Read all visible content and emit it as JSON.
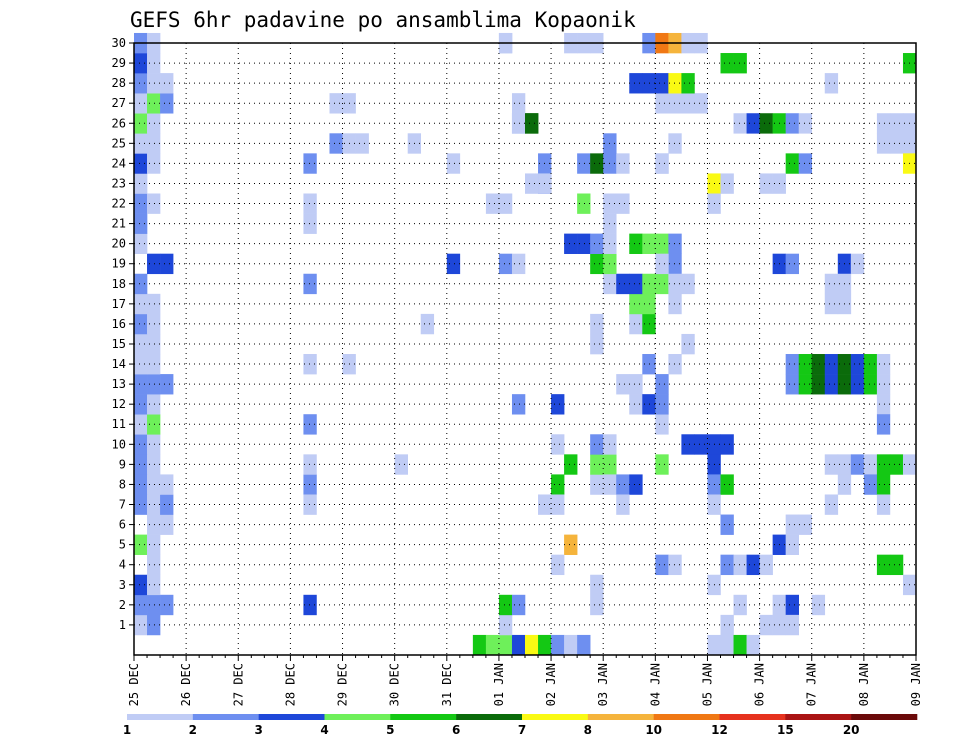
{
  "chart_data": {
    "type": "heatmap",
    "title": "GEFS 6hr padavine po ansamblima Kopaonik",
    "xlabel": "",
    "ylabel": "",
    "x_tick_labels": [
      "25 DEC",
      "26 DEC",
      "27 DEC",
      "28 DEC",
      "29 DEC",
      "30 DEC",
      "31 DEC",
      "01 JAN",
      "02 JAN",
      "03 JAN",
      "04 JAN",
      "05 JAN",
      "06 JAN",
      "07 JAN",
      "08 JAN",
      "09 JAN"
    ],
    "y_tick_labels": [
      "1",
      "2",
      "3",
      "4",
      "5",
      "6",
      "7",
      "8",
      "9",
      "10",
      "11",
      "12",
      "13",
      "14",
      "15",
      "16",
      "17",
      "18",
      "19",
      "20",
      "21",
      "22",
      "23",
      "24",
      "25",
      "26",
      "27",
      "28",
      "29",
      "30"
    ],
    "x_range_steps": [
      0,
      60
    ],
    "y_range_members": [
      0,
      30
    ],
    "time_step_hours": 6,
    "colorbar": {
      "tick_labels": [
        "1",
        "2",
        "3",
        "4",
        "5",
        "6",
        "7",
        "8",
        "10",
        "12",
        "15",
        "20"
      ],
      "colors": [
        "#c0ccf5",
        "#6e8ff0",
        "#1e47d9",
        "#6ef05a",
        "#14c814",
        "#0b6b0b",
        "#fafa14",
        "#f5b43c",
        "#f07814",
        "#e6321e",
        "#aa1414",
        "#6b0a0a"
      ]
    },
    "cells": [
      [
        1,
        0,
        1
      ],
      [
        1,
        1,
        2
      ],
      [
        2,
        0,
        2
      ],
      [
        2,
        1,
        2
      ],
      [
        2,
        2,
        2
      ],
      [
        3,
        0,
        3
      ],
      [
        3,
        1,
        1
      ],
      [
        4,
        1,
        1
      ],
      [
        5,
        0,
        4
      ],
      [
        5,
        1,
        1
      ],
      [
        6,
        1,
        1
      ],
      [
        6,
        2,
        1
      ],
      [
        7,
        0,
        2
      ],
      [
        7,
        1,
        1
      ],
      [
        7,
        2,
        2
      ],
      [
        8,
        0,
        2
      ],
      [
        8,
        1,
        1
      ],
      [
        8,
        2,
        1
      ],
      [
        9,
        0,
        2
      ],
      [
        9,
        1,
        1
      ],
      [
        10,
        0,
        2
      ],
      [
        10,
        1,
        1
      ],
      [
        11,
        0,
        1
      ],
      [
        11,
        1,
        4
      ],
      [
        12,
        0,
        2
      ],
      [
        12,
        1,
        1
      ],
      [
        13,
        0,
        2
      ],
      [
        13,
        1,
        2
      ],
      [
        13,
        2,
        2
      ],
      [
        14,
        0,
        1
      ],
      [
        14,
        1,
        1
      ],
      [
        15,
        0,
        1
      ],
      [
        15,
        1,
        1
      ],
      [
        16,
        0,
        2
      ],
      [
        16,
        1,
        1
      ],
      [
        17,
        0,
        1
      ],
      [
        17,
        1,
        1
      ],
      [
        18,
        0,
        2
      ],
      [
        19,
        1,
        3
      ],
      [
        19,
        2,
        3
      ],
      [
        20,
        0,
        1
      ],
      [
        21,
        0,
        2
      ],
      [
        22,
        0,
        2
      ],
      [
        22,
        1,
        1
      ],
      [
        23,
        0,
        1
      ],
      [
        24,
        0,
        3
      ],
      [
        24,
        1,
        1
      ],
      [
        25,
        0,
        1
      ],
      [
        25,
        1,
        1
      ],
      [
        26,
        0,
        4
      ],
      [
        26,
        1,
        1
      ],
      [
        27,
        0,
        1
      ],
      [
        27,
        1,
        4
      ],
      [
        27,
        2,
        2
      ],
      [
        28,
        0,
        2
      ],
      [
        28,
        1,
        1
      ],
      [
        28,
        2,
        1
      ],
      [
        29,
        0,
        3
      ],
      [
        29,
        1,
        1
      ],
      [
        30,
        0,
        2
      ],
      [
        30,
        1,
        1
      ],
      [
        2,
        13,
        3
      ],
      [
        8,
        13,
        2
      ],
      [
        7,
        13,
        1
      ],
      [
        9,
        13,
        1
      ],
      [
        11,
        13,
        2
      ],
      [
        14,
        13,
        1
      ],
      [
        18,
        13,
        2
      ],
      [
        21,
        13,
        1
      ],
      [
        22,
        13,
        1
      ],
      [
        24,
        13,
        2
      ],
      [
        27,
        15,
        1
      ],
      [
        27,
        16,
        1
      ],
      [
        25,
        15,
        2
      ],
      [
        25,
        16,
        1
      ],
      [
        25,
        17,
        1
      ],
      [
        9,
        20,
        1
      ],
      [
        14,
        16,
        1
      ],
      [
        25,
        21,
        1
      ],
      [
        16,
        22,
        1
      ],
      [
        24,
        24,
        1
      ],
      [
        19,
        24,
        3
      ],
      [
        0,
        26,
        5
      ],
      [
        0,
        27,
        4
      ],
      [
        0,
        28,
        4
      ],
      [
        0,
        29,
        3
      ],
      [
        1,
        28,
        1
      ],
      [
        2,
        28,
        5
      ],
      [
        2,
        29,
        2
      ],
      [
        0,
        30,
        7
      ],
      [
        0,
        31,
        5
      ],
      [
        0,
        32,
        2
      ],
      [
        0,
        33,
        1
      ],
      [
        0,
        34,
        2
      ],
      [
        26,
        29,
        2
      ],
      [
        26,
        30,
        6
      ],
      [
        27,
        29,
        1
      ],
      [
        30,
        28,
        1
      ],
      [
        22,
        27,
        1
      ],
      [
        22,
        28,
        1
      ],
      [
        19,
        28,
        2
      ],
      [
        19,
        29,
        1
      ],
      [
        24,
        31,
        2
      ],
      [
        23,
        30,
        1
      ],
      [
        23,
        31,
        2
      ],
      [
        12,
        29,
        2
      ],
      [
        12,
        32,
        3
      ],
      [
        8,
        32,
        5
      ],
      [
        7,
        31,
        1
      ],
      [
        7,
        32,
        1
      ],
      [
        10,
        32,
        1
      ],
      [
        5,
        33,
        8
      ],
      [
        8,
        35,
        1
      ],
      [
        4,
        32,
        1
      ],
      [
        3,
        35,
        1
      ],
      [
        2,
        35,
        1
      ],
      [
        9,
        33,
        5
      ],
      [
        9,
        35,
        4
      ],
      [
        9,
        36,
        4
      ],
      [
        10,
        35,
        2
      ],
      [
        10,
        36,
        1
      ],
      [
        8,
        36,
        1
      ],
      [
        8,
        37,
        2
      ],
      [
        8,
        38,
        3
      ],
      [
        7,
        37,
        1
      ],
      [
        13,
        37,
        1
      ],
      [
        13,
        38,
        1
      ],
      [
        12,
        38,
        1
      ],
      [
        12,
        39,
        3
      ],
      [
        14,
        39,
        2
      ],
      [
        16,
        38,
        1
      ],
      [
        16,
        39,
        5
      ],
      [
        17,
        38,
        4
      ],
      [
        17,
        39,
        4
      ],
      [
        18,
        36,
        1
      ],
      [
        18,
        37,
        3
      ],
      [
        18,
        38,
        3
      ],
      [
        18,
        39,
        4
      ],
      [
        18,
        40,
        4
      ],
      [
        19,
        35,
        5
      ],
      [
        19,
        36,
        4
      ],
      [
        19,
        41,
        2
      ],
      [
        15,
        35,
        1
      ],
      [
        16,
        35,
        1
      ],
      [
        20,
        33,
        3
      ],
      [
        20,
        34,
        3
      ],
      [
        20,
        35,
        2
      ],
      [
        20,
        36,
        1
      ],
      [
        20,
        38,
        5
      ],
      [
        20,
        39,
        4
      ],
      [
        20,
        40,
        4
      ],
      [
        20,
        41,
        2
      ],
      [
        19,
        40,
        1
      ],
      [
        22,
        34,
        4
      ],
      [
        22,
        36,
        1
      ],
      [
        22,
        37,
        1
      ],
      [
        21,
        36,
        1
      ],
      [
        23,
        31,
        1
      ],
      [
        24,
        34,
        2
      ],
      [
        24,
        35,
        6
      ],
      [
        24,
        36,
        2
      ],
      [
        24,
        37,
        1
      ],
      [
        24,
        40,
        1
      ],
      [
        25,
        36,
        2
      ],
      [
        26,
        29,
        1
      ],
      [
        26,
        30,
        6
      ],
      [
        30,
        28,
        1
      ],
      [
        30,
        33,
        1
      ],
      [
        30,
        34,
        1
      ],
      [
        30,
        35,
        1
      ],
      [
        13,
        40,
        2
      ],
      [
        14,
        41,
        1
      ],
      [
        18,
        41,
        1
      ],
      [
        18,
        42,
        1
      ],
      [
        17,
        41,
        1
      ],
      [
        15,
        42,
        1
      ],
      [
        10,
        42,
        3
      ],
      [
        10,
        43,
        3
      ],
      [
        9,
        44,
        3
      ],
      [
        8,
        44,
        2
      ],
      [
        8,
        45,
        5
      ],
      [
        7,
        44,
        1
      ],
      [
        6,
        45,
        2
      ],
      [
        4,
        45,
        2
      ],
      [
        4,
        46,
        1
      ],
      [
        3,
        44,
        1
      ],
      [
        2,
        46,
        1
      ],
      [
        1,
        45,
        1
      ],
      [
        1,
        49,
        1
      ],
      [
        4,
        40,
        2
      ],
      [
        4,
        41,
        1
      ],
      [
        9,
        40,
        4
      ],
      [
        11,
        40,
        1
      ],
      [
        12,
        40,
        2
      ],
      [
        27,
        40,
        1
      ],
      [
        27,
        41,
        1
      ],
      [
        27,
        42,
        1
      ],
      [
        27,
        43,
        1
      ],
      [
        25,
        41,
        1
      ],
      [
        24,
        40,
        1
      ],
      [
        28,
        38,
        3
      ],
      [
        28,
        39,
        3
      ],
      [
        28,
        40,
        3
      ],
      [
        28,
        41,
        7
      ],
      [
        28,
        42,
        5
      ],
      [
        29,
        45,
        5
      ],
      [
        29,
        46,
        5
      ],
      [
        30,
        39,
        2
      ],
      [
        30,
        40,
        9
      ],
      [
        30,
        41,
        8
      ],
      [
        30,
        42,
        1
      ],
      [
        30,
        43,
        1
      ],
      [
        26,
        46,
        1
      ],
      [
        26,
        47,
        3
      ],
      [
        26,
        48,
        6
      ],
      [
        26,
        49,
        5
      ],
      [
        26,
        50,
        2
      ],
      [
        26,
        51,
        1
      ],
      [
        24,
        50,
        5
      ],
      [
        24,
        51,
        2
      ],
      [
        23,
        48,
        1
      ],
      [
        23,
        49,
        1
      ],
      [
        23,
        44,
        7
      ],
      [
        23,
        45,
        1
      ],
      [
        22,
        44,
        1
      ],
      [
        14,
        50,
        2
      ],
      [
        14,
        51,
        5
      ],
      [
        14,
        52,
        6
      ],
      [
        14,
        53,
        3
      ],
      [
        14,
        54,
        6
      ],
      [
        14,
        55,
        3
      ],
      [
        14,
        56,
        5
      ],
      [
        14,
        57,
        1
      ],
      [
        13,
        50,
        2
      ],
      [
        13,
        51,
        5
      ],
      [
        13,
        52,
        6
      ],
      [
        13,
        53,
        3
      ],
      [
        13,
        54,
        6
      ],
      [
        13,
        55,
        3
      ],
      [
        13,
        56,
        5
      ],
      [
        13,
        57,
        1
      ],
      [
        19,
        49,
        3
      ],
      [
        19,
        50,
        2
      ],
      [
        19,
        54,
        3
      ],
      [
        19,
        55,
        1
      ],
      [
        18,
        53,
        1
      ],
      [
        18,
        54,
        1
      ],
      [
        17,
        53,
        1
      ],
      [
        17,
        54,
        1
      ],
      [
        12,
        57,
        1
      ],
      [
        11,
        57,
        2
      ],
      [
        9,
        53,
        1
      ],
      [
        9,
        54,
        1
      ],
      [
        9,
        55,
        2
      ],
      [
        9,
        56,
        1
      ],
      [
        9,
        57,
        5
      ],
      [
        9,
        58,
        5
      ],
      [
        9,
        59,
        1
      ],
      [
        8,
        54,
        1
      ],
      [
        8,
        56,
        2
      ],
      [
        8,
        57,
        5
      ],
      [
        7,
        53,
        1
      ],
      [
        7,
        57,
        1
      ],
      [
        6,
        50,
        1
      ],
      [
        6,
        51,
        1
      ],
      [
        5,
        49,
        3
      ],
      [
        5,
        50,
        1
      ],
      [
        4,
        47,
        3
      ],
      [
        4,
        48,
        1
      ],
      [
        4,
        57,
        5
      ],
      [
        4,
        58,
        5
      ],
      [
        3,
        59,
        1
      ],
      [
        2,
        49,
        1
      ],
      [
        2,
        50,
        3
      ],
      [
        2,
        52,
        1
      ],
      [
        1,
        48,
        1
      ],
      [
        1,
        50,
        1
      ],
      [
        0,
        44,
        1
      ],
      [
        0,
        45,
        1
      ],
      [
        0,
        46,
        5
      ],
      [
        0,
        47,
        1
      ],
      [
        28,
        53,
        1
      ],
      [
        25,
        57,
        1
      ],
      [
        25,
        58,
        1
      ],
      [
        25,
        59,
        1
      ],
      [
        26,
        57,
        1
      ],
      [
        26,
        58,
        1
      ],
      [
        26,
        59,
        1
      ],
      [
        24,
        59,
        7
      ],
      [
        29,
        59,
        5
      ],
      [
        10,
        45,
        3
      ],
      [
        10,
        44,
        3
      ]
    ]
  }
}
